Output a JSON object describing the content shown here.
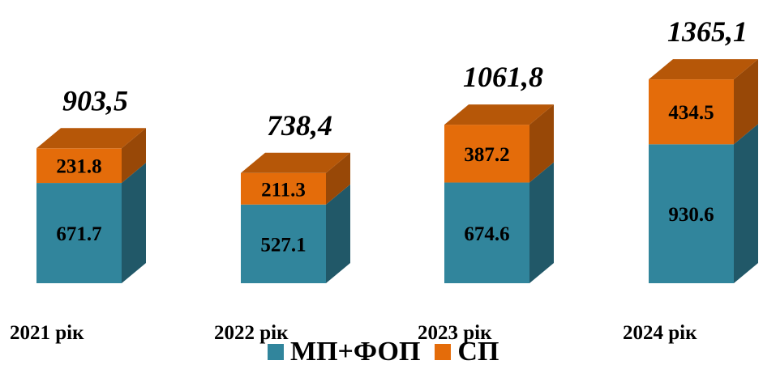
{
  "chart_data": {
    "type": "bar",
    "stacked": true,
    "style": "3d-column",
    "categories": [
      "2021 рік",
      "2022 рік",
      "2023 рік",
      "2024 рік"
    ],
    "series": [
      {
        "name": "МП+ФОП",
        "values": [
          671.7,
          527.1,
          674.6,
          930.6
        ],
        "labels": [
          "671.7",
          "527.1",
          "674.6",
          "930.6"
        ],
        "color": "#31859C"
      },
      {
        "name": "СП",
        "values": [
          231.8,
          211.3,
          387.2,
          434.5
        ],
        "labels": [
          "231.8",
          "211.3",
          "387.2",
          "434.5"
        ],
        "color": "#E46C0A"
      }
    ],
    "totals": [
      903.5,
      738.4,
      1061.8,
      1365.1
    ],
    "total_labels": [
      "903,5",
      "738,4",
      "1061,8",
      "1365,1"
    ],
    "legend_position": "bottom",
    "grid": false
  },
  "colors": {
    "series1_front": "#31859C",
    "series1_side": "#215868",
    "series1_top": "#31859C",
    "series2_front": "#E46C0A",
    "series2_side": "#984807",
    "series2_top": "#B65708"
  }
}
